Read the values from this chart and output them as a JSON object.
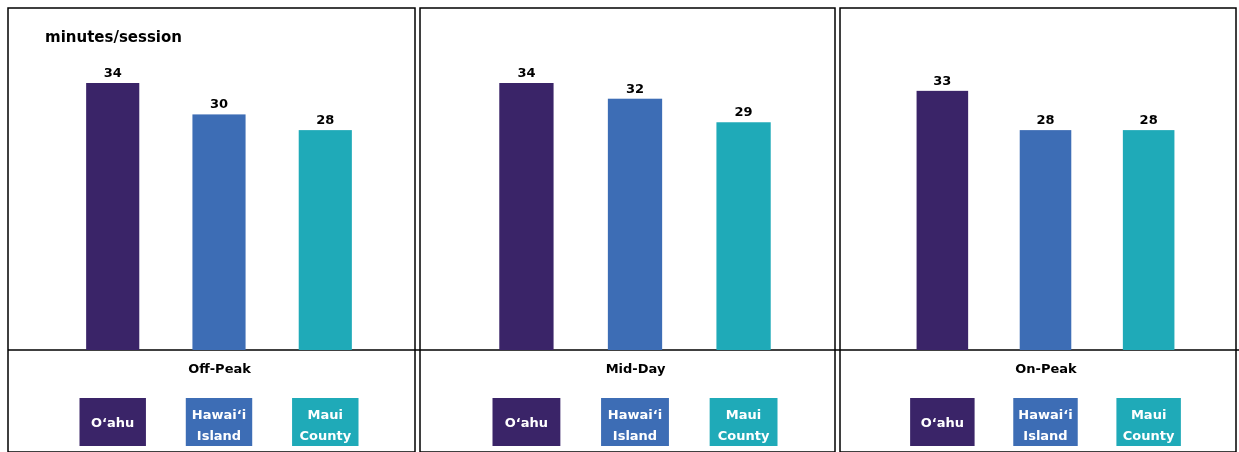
{
  "chart_data": [
    {
      "type": "bar",
      "xlabel": "Off-Peak",
      "ylabel": "minutes/session",
      "categories": [
        "O‘ahu",
        "Hawai‘i Island",
        "Maui County"
      ],
      "values": [
        34,
        30,
        28
      ],
      "colors": [
        "#3a2468",
        "#3d6db5",
        "#1faab8"
      ],
      "data_labels": true
    },
    {
      "type": "bar",
      "xlabel": "Mid-Day",
      "categories": [
        "O‘ahu",
        "Hawai‘i Island",
        "Maui County"
      ],
      "values": [
        34,
        32,
        29
      ],
      "colors": [
        "#3a2468",
        "#3d6db5",
        "#1faab8"
      ],
      "data_labels": true
    },
    {
      "type": "bar",
      "xlabel": "On-Peak",
      "categories": [
        "O‘ahu",
        "Hawai‘i Island",
        "Maui County"
      ],
      "values": [
        33,
        28,
        28
      ],
      "colors": [
        "#3a2468",
        "#3d6db5",
        "#1faab8"
      ],
      "data_labels": true
    }
  ]
}
